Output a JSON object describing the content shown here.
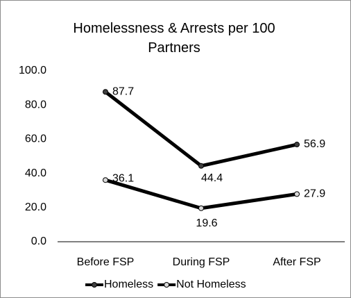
{
  "chart_data": {
    "type": "line",
    "title": "Homelessness & Arrests per 100 Partners",
    "categories": [
      "Before FSP",
      "During FSP",
      "After FSP"
    ],
    "series": [
      {
        "name": "Homeless",
        "color": "#000000",
        "marker_color": "#404040",
        "values": [
          87.7,
          44.4,
          56.9
        ]
      },
      {
        "name": "Not Homeless",
        "color": "#000000",
        "marker_color": "#d9d9d9",
        "values": [
          36.1,
          19.6,
          27.9
        ]
      }
    ],
    "ylim": [
      0,
      100
    ],
    "yticks": [
      {
        "value": 0,
        "label": "0.0"
      },
      {
        "value": 20,
        "label": "20.0"
      },
      {
        "value": 40,
        "label": "40.0"
      },
      {
        "value": 60,
        "label": "60.0"
      },
      {
        "value": 80,
        "label": "80.0"
      },
      {
        "value": 100,
        "label": "100.0"
      }
    ],
    "grid": false,
    "legend": "bottom"
  }
}
